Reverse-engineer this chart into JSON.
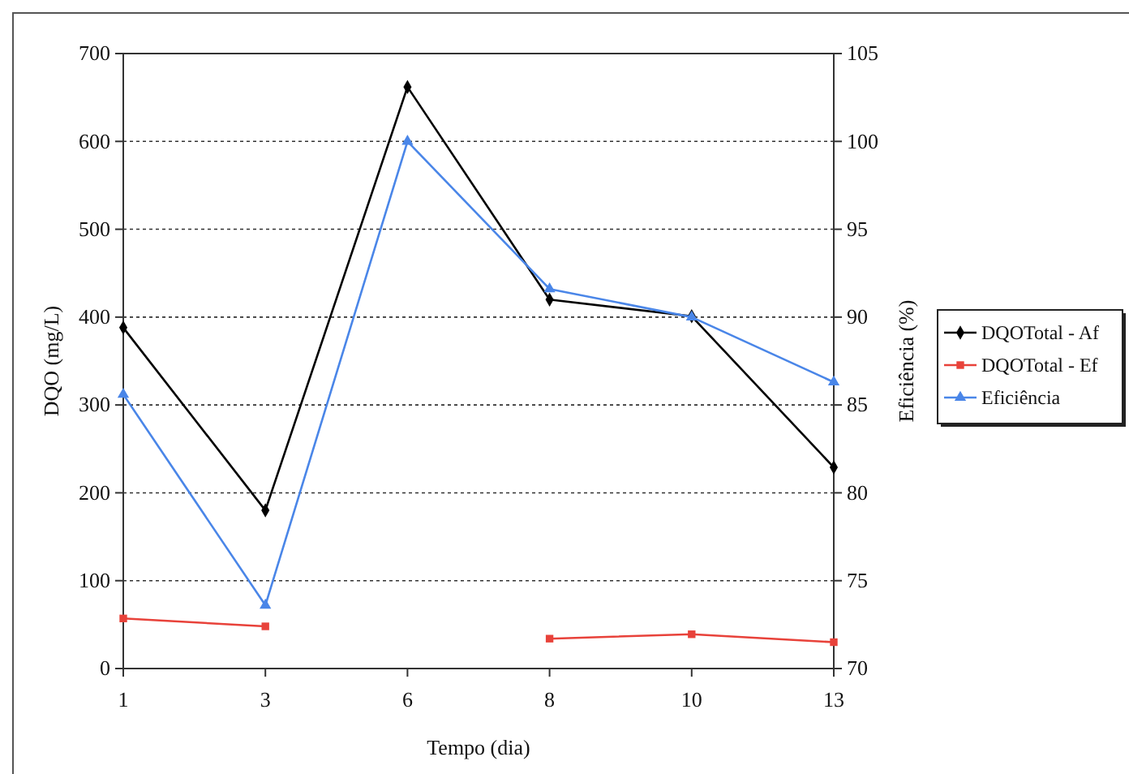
{
  "chart_data": {
    "type": "line",
    "xlabel": "Tempo (dia)",
    "ylabel": "DQO (mg/L)",
    "y2label": "Eficiência (%)",
    "categories": [
      "1",
      "3",
      "6",
      "8",
      "10",
      "13"
    ],
    "series": [
      {
        "name": "DQOTotal - Af",
        "color": "#000000",
        "marker": "diamond",
        "values": [
          388,
          180,
          662,
          420,
          401,
          229
        ]
      },
      {
        "name": "DQOTotal - Ef",
        "color": "#e8423a",
        "marker": "square",
        "values": [
          57,
          48,
          null,
          34,
          39,
          30
        ]
      },
      {
        "name": "Eficiência",
        "color": "#4a86e8",
        "marker": "triangle",
        "axis": "y2",
        "values": [
          85.6,
          73.6,
          100,
          91.6,
          90,
          86.3
        ]
      }
    ],
    "ylim": [
      0,
      700
    ],
    "yticks": [
      0,
      100,
      200,
      300,
      400,
      500,
      600,
      700
    ],
    "y2lim": [
      70,
      105
    ],
    "y2ticks": [
      70,
      75,
      80,
      85,
      90,
      95,
      100,
      105
    ],
    "grid": "y",
    "legend": "right",
    "line_style": "solid"
  }
}
